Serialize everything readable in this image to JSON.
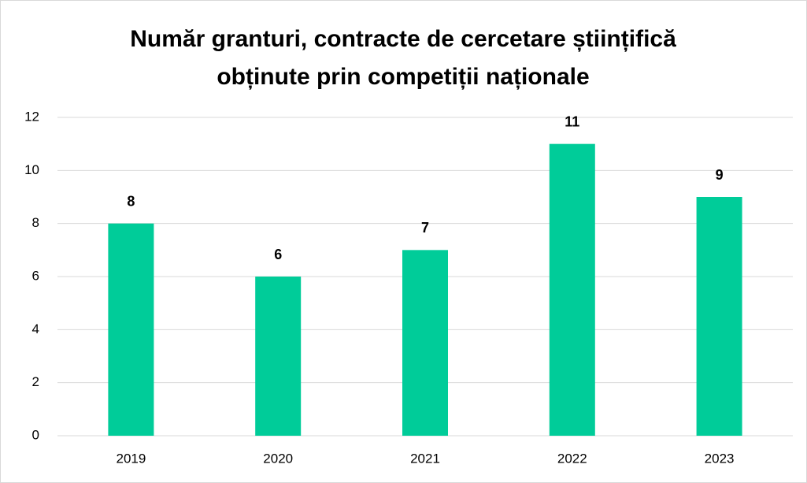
{
  "chart_data": {
    "type": "bar",
    "title": "Număr granturi, contracte de cercetare științifică obținute prin competiții naționale",
    "categories": [
      "2019",
      "2020",
      "2021",
      "2022",
      "2023"
    ],
    "values": [
      8,
      6,
      7,
      11,
      9
    ],
    "color": "#00cc99",
    "ylim": [
      0,
      12
    ],
    "yticks": [
      0,
      2,
      4,
      6,
      8,
      10,
      12
    ],
    "grid": true
  }
}
